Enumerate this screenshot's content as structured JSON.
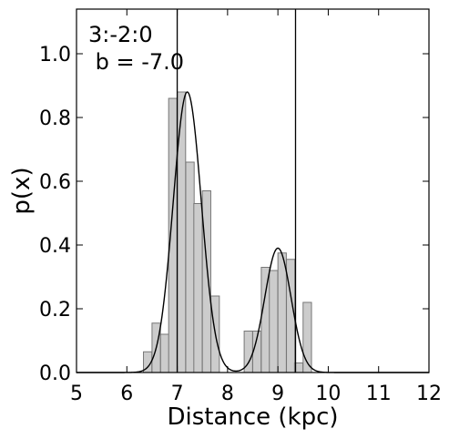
{
  "chart_data": {
    "type": "bar",
    "title": "",
    "xlabel": "Distance (kpc)",
    "ylabel": "p(x)",
    "xlim": [
      5,
      12
    ],
    "ylim": [
      0,
      1.14
    ],
    "grid": false,
    "xticks": [
      5,
      6,
      7,
      8,
      9,
      10,
      11,
      12
    ],
    "yticks": [
      0.0,
      0.2,
      0.4,
      0.6,
      0.8,
      1.0
    ],
    "annotation_lines": [
      "3:-2:0",
      " b = -7.0"
    ],
    "histogram": {
      "bin_width": 0.167,
      "bins": [
        {
          "x0": 6.33,
          "value": 0.065
        },
        {
          "x0": 6.5,
          "value": 0.155
        },
        {
          "x0": 6.67,
          "value": 0.12
        },
        {
          "x0": 6.83,
          "value": 0.86
        },
        {
          "x0": 7.0,
          "value": 0.88
        },
        {
          "x0": 7.17,
          "value": 0.66
        },
        {
          "x0": 7.33,
          "value": 0.53
        },
        {
          "x0": 7.5,
          "value": 0.57
        },
        {
          "x0": 7.67,
          "value": 0.24
        },
        {
          "x0": 8.33,
          "value": 0.13
        },
        {
          "x0": 8.5,
          "value": 0.13
        },
        {
          "x0": 8.67,
          "value": 0.33
        },
        {
          "x0": 8.83,
          "value": 0.32
        },
        {
          "x0": 9.0,
          "value": 0.375
        },
        {
          "x0": 9.17,
          "value": 0.355
        },
        {
          "x0": 9.33,
          "value": 0.03
        },
        {
          "x0": 9.5,
          "value": 0.22
        }
      ]
    },
    "fit_curve": {
      "components": [
        {
          "mean": 7.2,
          "sigma": 0.28,
          "amplitude": 0.88
        },
        {
          "mean": 9.0,
          "sigma": 0.26,
          "amplitude": 0.39
        }
      ]
    },
    "vertical_lines": [
      7.0,
      9.35
    ],
    "colors": {
      "bar_fill": "#cccccc",
      "bar_edge": "#777777",
      "line": "#000000"
    }
  }
}
